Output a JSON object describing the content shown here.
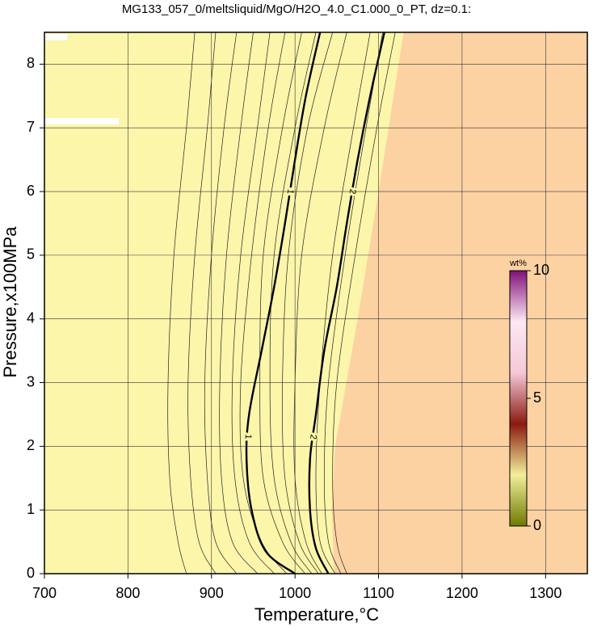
{
  "chart_data": {
    "type": "contour",
    "title": "MG133_057_0/meltsliquid/MgO/H2O_4.0_C1.000_0_PT, dz=0.1:",
    "x_label": "Temperature,°C",
    "y_label": "Pressure,x100MPa",
    "xlim": [
      700,
      1350
    ],
    "ylim": [
      0,
      8.5
    ],
    "xticks": [
      700,
      800,
      900,
      1000,
      1100,
      1200,
      1300
    ],
    "yticks": [
      0,
      1,
      2,
      3,
      4,
      5,
      6,
      7,
      8
    ],
    "grid": true,
    "low_color": "#fbf6aa",
    "high_color": "#fdd2a3",
    "high_region": {
      "x": [
        1047,
        1044,
        1048,
        1075,
        1100,
        1130
      ],
      "y": [
        0,
        1,
        2,
        4,
        6,
        8.5
      ]
    },
    "labeled_contours": [
      {
        "label": "1",
        "x": [
          1000,
          965,
          948,
          942,
          945,
          960,
          975,
          988,
          1000,
          1013,
          1030
        ],
        "y": [
          0,
          0.35,
          1,
          1.8,
          2.5,
          3.5,
          4.5,
          5.5,
          6.5,
          7.5,
          8.5
        ]
      },
      {
        "label": "2",
        "x": [
          1040,
          1025,
          1018,
          1018,
          1025,
          1035,
          1050,
          1062,
          1075,
          1090,
          1107
        ],
        "y": [
          0,
          0.4,
          1,
          1.8,
          2.5,
          3.5,
          4.5,
          5.5,
          6.5,
          7.5,
          8.5
        ]
      }
    ],
    "thin_contours": {
      "y": [
        0,
        0.5,
        1.5,
        3,
        5,
        7,
        8.5
      ],
      "x": [
        [
          870,
          860,
          850,
          848,
          855,
          870,
          880
        ],
        [
          905,
          885,
          875,
          872,
          880,
          895,
          905
        ],
        [
          930,
          905,
          895,
          892,
          900,
          915,
          930
        ],
        [
          955,
          925,
          912,
          910,
          918,
          935,
          950
        ],
        [
          975,
          945,
          928,
          925,
          935,
          955,
          970
        ],
        [
          990,
          960,
          938,
          935,
          948,
          968,
          988
        ],
        [
          1012,
          985,
          962,
          958,
          962,
          985,
          1008
        ],
        [
          1020,
          995,
          975,
          970,
          975,
          1000,
          1025
        ],
        [
          1028,
          1005,
          988,
          985,
          992,
          1015,
          1045
        ],
        [
          1032,
          1013,
          1000,
          1000,
          1008,
          1035,
          1062
        ],
        [
          1048,
          1030,
          1025,
          1030,
          1045,
          1070,
          1090
        ],
        [
          1055,
          1040,
          1035,
          1040,
          1060,
          1085,
          1105
        ],
        [
          1062,
          1050,
          1045,
          1050,
          1072,
          1098,
          1120
        ]
      ]
    },
    "colorbar": {
      "label": "wt%",
      "lim": [
        0,
        10
      ],
      "ticks": [
        0,
        5,
        10
      ],
      "colors": [
        "#6e7a00",
        "#f2ee9a",
        "#8a1a10",
        "#f5c8d8",
        "#fde8f4",
        "#80107a"
      ]
    }
  }
}
